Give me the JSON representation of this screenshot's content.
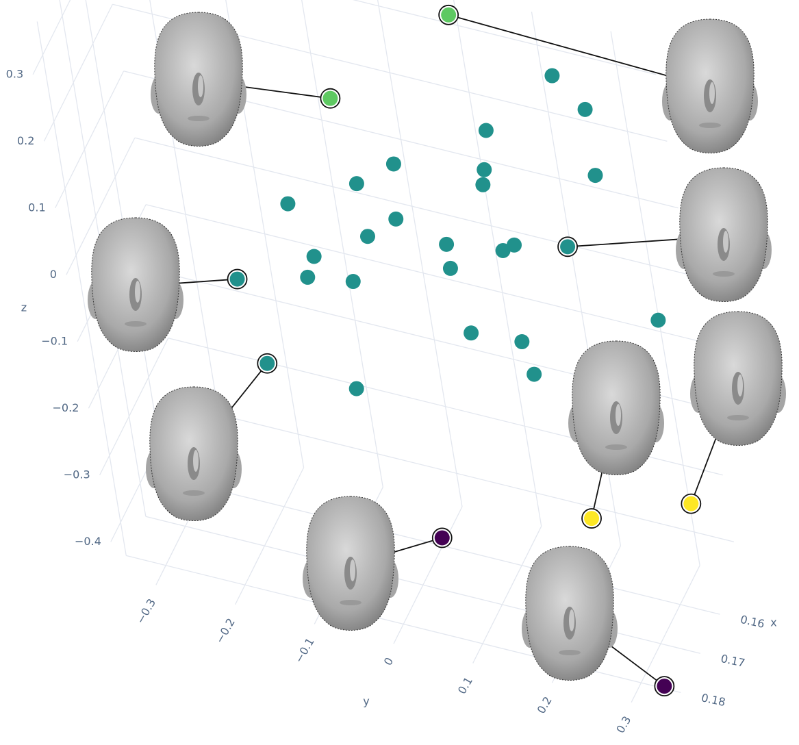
{
  "chart_data": {
    "type": "scatter3d",
    "xlabel": "x",
    "ylabel": "y",
    "zlabel": "z",
    "xlim": [
      0.15,
      0.185
    ],
    "ylim": [
      -0.35,
      0.35
    ],
    "zlim": [
      -0.45,
      0.35
    ],
    "xticks": [
      0.16,
      0.17,
      0.18
    ],
    "yticks": [
      {
        "value": -0.3,
        "label": "−0.3"
      },
      {
        "value": -0.2,
        "label": "−0.2"
      },
      {
        "value": -0.1,
        "label": "−0.1"
      },
      0,
      0.1,
      0.2,
      0.3
    ],
    "zticks": [
      {
        "value": -0.4,
        "label": "−0.4"
      },
      {
        "value": -0.3,
        "label": "−0.3"
      },
      {
        "value": -0.2,
        "label": "−0.2"
      },
      {
        "value": -0.1,
        "label": "−0.1"
      },
      0,
      0.1,
      0.2,
      0.3
    ],
    "grid": true,
    "x": [
      0.15,
      0.15,
      0.15,
      0.15,
      0.15,
      0.15,
      0.15,
      0.15,
      0.15,
      0.15,
      0.15,
      0.1675,
      0.1675,
      0.1675,
      0.1675,
      0.1675,
      0.1675,
      0.1675,
      0.1675,
      0.1675,
      0.1675,
      0.1675,
      0.15,
      0.1675,
      0.1675,
      0.185,
      0.185,
      0.185,
      0.185,
      0.15,
      0.185,
      0.185
    ],
    "y": [
      0.09,
      -0.084,
      0.213,
      0.249,
      0.114,
      -0.015,
      0.103,
      -0.068,
      0.098,
      0.248,
      -0.163,
      0.036,
      -0.005,
      0.097,
      0.17,
      0.186,
      0.256,
      -0.08,
      0.097,
      -0.093,
      -0.034,
      -0.186,
      0.299,
      0.11,
      0.175,
      -0.105,
      0.244,
      0.007,
      0.288,
      0.302,
      0.087,
      0.347
    ],
    "z": [
      0.313,
      0.137,
      0.258,
      0.218,
      0.147,
      0.059,
      0.085,
      0.014,
      0.061,
      0.119,
      -0.044,
      0.094,
      0.056,
      0.074,
      0.086,
      0.099,
      0.117,
      0.004,
      0.038,
      -0.031,
      -0.02,
      -0.061,
      -0.083,
      -0.055,
      -0.049,
      -0.061,
      0.025,
      -0.066,
      -0.178,
      -0.357,
      -0.266,
      -0.412
    ],
    "colors": [
      "#5ec962",
      "#5ec962",
      "#21918c",
      "#21918c",
      "#21918c",
      "#21918c",
      "#21918c",
      "#21918c",
      "#21918c",
      "#21918c",
      "#21918c",
      "#21918c",
      "#21918c",
      "#21918c",
      "#21918c",
      "#21918c",
      "#21918c",
      "#21918c",
      "#21918c",
      "#21918c",
      "#21918c",
      "#21918c",
      "#21918c",
      "#21918c",
      "#21918c",
      "#21918c",
      "#21918c",
      "#21918c",
      "#fde725",
      "#fde725",
      "#440154",
      "#440154"
    ]
  }
}
